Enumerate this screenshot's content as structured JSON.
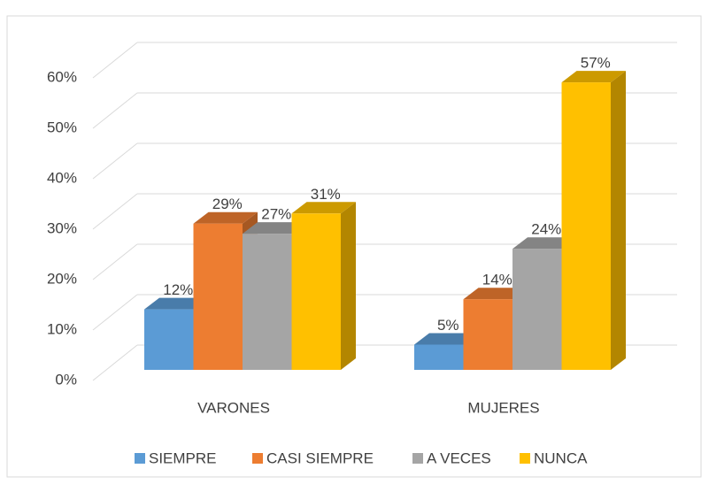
{
  "chart_data": {
    "type": "bar3d",
    "categories": [
      "VARONES",
      "MUJERES"
    ],
    "series": [
      {
        "name": "SIEMPRE",
        "color": "#5b9bd5",
        "values": [
          12,
          5
        ],
        "value_labels": [
          "12%",
          "5%"
        ]
      },
      {
        "name": "CASI SIEMPRE",
        "color": "#ed7d31",
        "values": [
          29,
          14
        ],
        "value_labels": [
          "29%",
          "14%"
        ]
      },
      {
        "name": "A VECES",
        "color": "#a5a5a5",
        "values": [
          27,
          24
        ],
        "value_labels": [
          "27%",
          "24%"
        ]
      },
      {
        "name": "NUNCA",
        "color": "#ffc000",
        "values": [
          31,
          57
        ],
        "value_labels": [
          "31%",
          "57%"
        ]
      }
    ],
    "ylim": [
      0,
      60
    ],
    "yticks": [
      {
        "value": 0,
        "label": "0%"
      },
      {
        "value": 10,
        "label": "10%"
      },
      {
        "value": 20,
        "label": "20%"
      },
      {
        "value": 30,
        "label": "30%"
      },
      {
        "value": 40,
        "label": "40%"
      },
      {
        "value": 50,
        "label": "50%"
      },
      {
        "value": 60,
        "label": "60%"
      }
    ],
    "grid": true,
    "legend": "bottom"
  }
}
